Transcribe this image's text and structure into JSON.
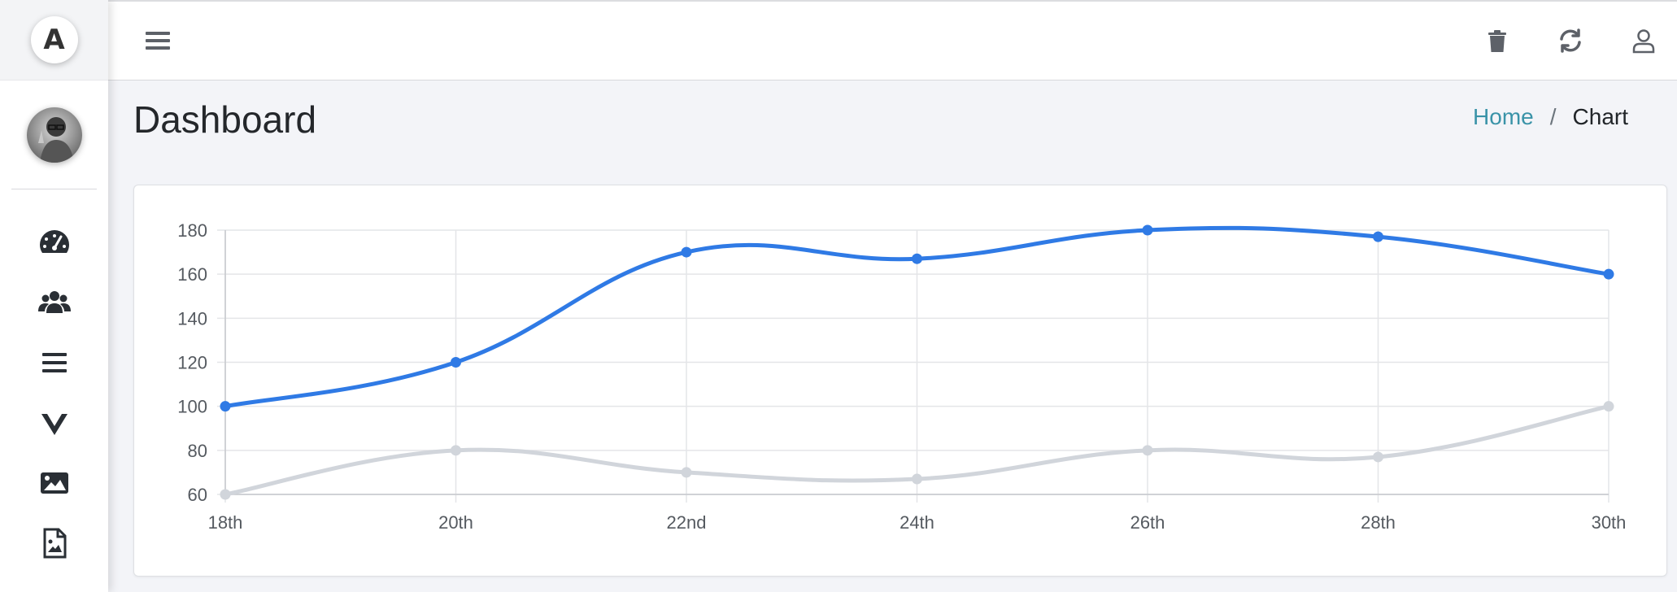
{
  "sidebar": {
    "logo_letter": "A",
    "items": [
      {
        "icon": "dashboard-gauge-icon"
      },
      {
        "icon": "users-icon"
      },
      {
        "icon": "list-icon"
      },
      {
        "icon": "vue-icon"
      },
      {
        "icon": "image-icon"
      },
      {
        "icon": "file-image-icon"
      }
    ]
  },
  "topbar": {
    "menu_icon": "hamburger-icon",
    "actions": [
      "trash-icon",
      "refresh-icon",
      "user-icon"
    ]
  },
  "page": {
    "title": "Dashboard",
    "breadcrumb": {
      "home": "Home",
      "separator": "/",
      "current": "Chart"
    }
  },
  "colors": {
    "accent_line": "#2f7ae5",
    "secondary_line": "#d1d5db",
    "link": "#3a93a8"
  },
  "chart_data": {
    "type": "line",
    "categories": [
      "18th",
      "20th",
      "22nd",
      "24th",
      "26th",
      "28th",
      "30th"
    ],
    "series": [
      {
        "values": [
          100,
          120,
          170,
          167,
          180,
          177,
          160
        ],
        "color": "#2f7ae5"
      },
      {
        "values": [
          60,
          80,
          70,
          67,
          80,
          77,
          100
        ],
        "color": "#d1d5db"
      }
    ],
    "yticks": [
      60,
      80,
      100,
      120,
      140,
      160,
      180
    ],
    "ylim": [
      60,
      180
    ],
    "grid": true
  }
}
